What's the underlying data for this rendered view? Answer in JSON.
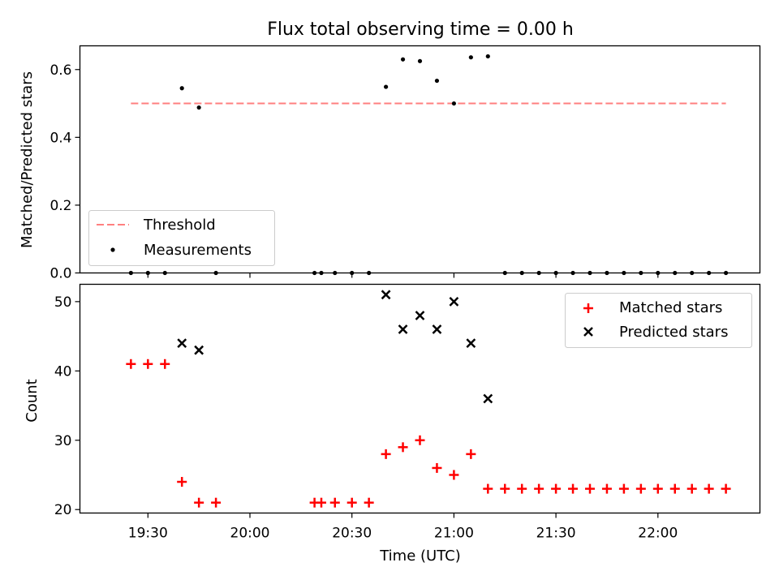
{
  "title": "Flux total observing time = 0.00 h",
  "chart_data": [
    {
      "type": "scatter",
      "ylabel": "Matched/Predicted stars",
      "xlim": [
        "19:10",
        "22:30"
      ],
      "ylim": [
        0,
        0.67
      ],
      "yticks": [
        0.0,
        0.2,
        0.4,
        0.6
      ],
      "ytick_labels": [
        "0.0",
        "0.2",
        "0.4",
        "0.6"
      ],
      "grid": false,
      "legend_position": "lower-left",
      "threshold": {
        "name": "Threshold",
        "value": 0.5,
        "x_range": [
          "19:25",
          "22:20"
        ],
        "color": "#ff7f7f",
        "style": "dashed"
      },
      "series": [
        {
          "name": "Measurements",
          "color": "#000000",
          "marker": "dot",
          "x": [
            "19:25",
            "19:30",
            "19:35",
            "19:40",
            "19:45",
            "19:50",
            "20:19",
            "20:21",
            "20:25",
            "20:30",
            "20:35",
            "20:40",
            "20:45",
            "20:50",
            "20:55",
            "21:00",
            "21:05",
            "21:10",
            "21:15",
            "21:20",
            "21:25",
            "21:30",
            "21:35",
            "21:40",
            "21:45",
            "21:50",
            "21:55",
            "22:00",
            "22:05",
            "22:10",
            "22:15",
            "22:20"
          ],
          "y": [
            0,
            0,
            0,
            0.545,
            0.488,
            0,
            0,
            0,
            0,
            0,
            0,
            0.549,
            0.63,
            0.625,
            0.567,
            0.5,
            0.636,
            0.639,
            0,
            0,
            0,
            0,
            0,
            0,
            0,
            0,
            0,
            0,
            0,
            0,
            0,
            0
          ]
        }
      ]
    },
    {
      "type": "scatter",
      "xlabel": "Time (UTC)",
      "ylabel": "Count",
      "xlim": [
        "19:10",
        "22:30"
      ],
      "ylim": [
        19.5,
        52.5
      ],
      "xticks": [
        "19:30",
        "20:00",
        "20:30",
        "21:00",
        "21:30",
        "22:00"
      ],
      "yticks": [
        20,
        30,
        40,
        50
      ],
      "ytick_labels": [
        "20",
        "30",
        "40",
        "50"
      ],
      "grid": false,
      "legend_position": "top-right",
      "series": [
        {
          "name": "Matched stars",
          "color": "#ff0000",
          "marker": "plus",
          "x": [
            "19:25",
            "19:30",
            "19:35",
            "19:40",
            "19:45",
            "19:50",
            "20:19",
            "20:21",
            "20:25",
            "20:30",
            "20:35",
            "20:40",
            "20:45",
            "20:50",
            "20:55",
            "21:00",
            "21:05",
            "21:10",
            "21:15",
            "21:20",
            "21:25",
            "21:30",
            "21:35",
            "21:40",
            "21:45",
            "21:50",
            "21:55",
            "22:00",
            "22:05",
            "22:10",
            "22:15",
            "22:20"
          ],
          "y": [
            41,
            41,
            41,
            24,
            21,
            21,
            21,
            21,
            21,
            21,
            21,
            28,
            29,
            30,
            26,
            25,
            28,
            23,
            23,
            23,
            23,
            23,
            23,
            23,
            23,
            23,
            23,
            23,
            23,
            23,
            23,
            23
          ]
        },
        {
          "name": "Predicted stars",
          "color": "#000000",
          "marker": "x",
          "x": [
            "19:40",
            "19:45",
            "20:40",
            "20:45",
            "20:50",
            "20:55",
            "21:00",
            "21:05",
            "21:10"
          ],
          "y": [
            44,
            43,
            51,
            46,
            48,
            46,
            50,
            44,
            36
          ]
        }
      ]
    }
  ]
}
